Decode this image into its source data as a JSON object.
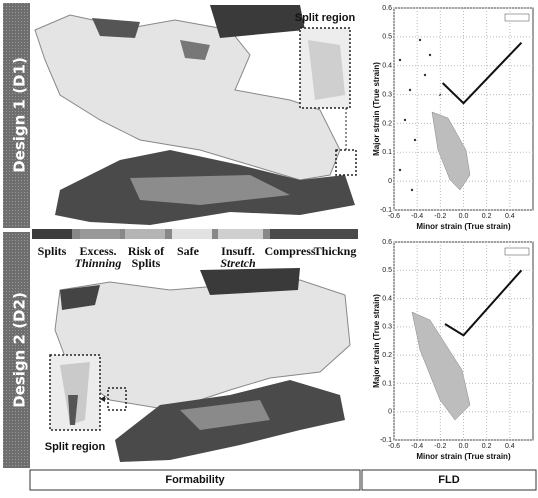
{
  "rows": [
    {
      "label": "Design 1 (D1)",
      "callout": "Split region"
    },
    {
      "label": "Design 2 (D2)",
      "callout": "Split region"
    }
  ],
  "legend": [
    {
      "lines": [
        "Splits"
      ]
    },
    {
      "lines": [
        "Excess.",
        "Thinning"
      ]
    },
    {
      "lines": [
        "Risk of",
        "Splits"
      ]
    },
    {
      "lines": [
        "Safe"
      ]
    },
    {
      "lines": [
        "Insuff.",
        "Stretch"
      ]
    },
    {
      "lines": [
        "Compress"
      ]
    },
    {
      "lines": [
        "Thickng"
      ]
    }
  ],
  "charts": [
    {
      "xlabel": "Minor strain (True strain)",
      "ylabel": "Major strain (True strain)",
      "xlim": [
        -0.6,
        0.6
      ],
      "ylim": [
        -0.1,
        0.6
      ],
      "xticks": [
        -0.6,
        -0.4,
        -0.2,
        {
          "value": 0,
          "label": "0.0"
        },
        0.2,
        0.4
      ],
      "yticks": [
        0.6,
        0.5,
        0.4,
        0.3,
        0.2,
        0.1,
        0,
        -0.1
      ],
      "flc": {
        "x": [
          -0.18,
          0,
          0.5
        ],
        "y": [
          0.34,
          0.27,
          0.48
        ]
      }
    },
    {
      "xlabel": "Minor strain (True strain)",
      "ylabel": "Major strain (True strain)",
      "xlim": [
        -0.6,
        0.6
      ],
      "ylim": [
        -0.1,
        0.6
      ],
      "xticks": [
        -0.6,
        -0.4,
        -0.2,
        {
          "value": 0,
          "label": "0.0"
        },
        0.2,
        0.4
      ],
      "yticks": [
        0.6,
        0.5,
        0.4,
        0.3,
        0.2,
        0.1,
        0,
        -0.1
      ],
      "flc": {
        "x": [
          -0.16,
          0,
          0.5
        ],
        "y": [
          0.31,
          0.27,
          0.5
        ]
      }
    }
  ],
  "footer": [
    "Formability",
    "FLD"
  ]
}
